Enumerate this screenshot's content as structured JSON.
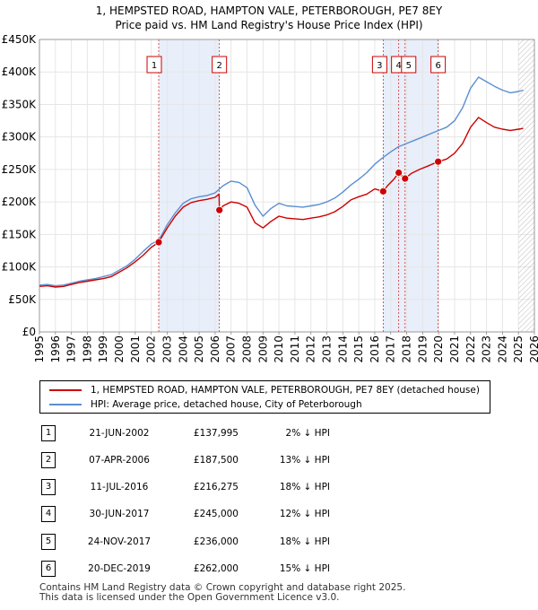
{
  "title_line1": "1, HEMPSTED ROAD, HAMPTON VALE, PETERBOROUGH, PE7 8EY",
  "title_line2": "Price paid vs. HM Land Registry's House Price Index (HPI)",
  "legend": {
    "property_label": "1, HEMPSTED ROAD, HAMPTON VALE, PETERBOROUGH, PE7 8EY (detached house)",
    "hpi_label": "HPI: Average price, detached house, City of Peterborough"
  },
  "colors": {
    "property_line": "#cc0000",
    "hpi_line": "#5a8fd0",
    "shade": "#e8eefa",
    "marker_border": "#cc0000",
    "grid": "#e6e6e6"
  },
  "sales": [
    {
      "num": "1",
      "date": "21-JUN-2002",
      "price": "£137,995",
      "pct": "2% ↓ HPI",
      "year": 2002.47,
      "value": 137995
    },
    {
      "num": "2",
      "date": "07-APR-2006",
      "price": "£187,500",
      "pct": "13% ↓ HPI",
      "year": 2006.27,
      "value": 187500
    },
    {
      "num": "3",
      "date": "11-JUL-2016",
      "price": "£216,275",
      "pct": "18% ↓ HPI",
      "year": 2016.53,
      "value": 216275
    },
    {
      "num": "4",
      "date": "30-JUN-2017",
      "price": "£245,000",
      "pct": "12% ↓ HPI",
      "year": 2017.5,
      "value": 245000
    },
    {
      "num": "5",
      "date": "24-NOV-2017",
      "price": "£236,000",
      "pct": "18% ↓ HPI",
      "year": 2017.9,
      "value": 236000
    },
    {
      "num": "6",
      "date": "20-DEC-2019",
      "price": "£262,000",
      "pct": "15% ↓ HPI",
      "year": 2019.97,
      "value": 262000
    }
  ],
  "footer_line1": "Contains HM Land Registry data © Crown copyright and database right 2025.",
  "footer_line2": "This data is licensed under the Open Government Licence v3.0.",
  "chart_data": {
    "type": "line",
    "title": "1, HEMPSTED ROAD, HAMPTON VALE, PETERBOROUGH, PE7 8EY — Price paid vs. HM Land Registry's House Price Index (HPI)",
    "xlabel": "",
    "ylabel": "",
    "xlim": [
      1995,
      2026
    ],
    "ylim": [
      0,
      450000
    ],
    "x_ticks": [
      "1995",
      "1996",
      "1997",
      "1998",
      "1999",
      "2000",
      "2001",
      "2002",
      "2003",
      "2004",
      "2005",
      "2006",
      "2007",
      "2008",
      "2009",
      "2010",
      "2011",
      "2012",
      "2013",
      "2014",
      "2015",
      "2016",
      "2017",
      "2018",
      "2019",
      "2020",
      "2021",
      "2022",
      "2023",
      "2024",
      "2025",
      "2026"
    ],
    "y_ticks": [
      {
        "value": 0,
        "label": "£0"
      },
      {
        "value": 50000,
        "label": "£50K"
      },
      {
        "value": 100000,
        "label": "£100K"
      },
      {
        "value": 150000,
        "label": "£150K"
      },
      {
        "value": 200000,
        "label": "£200K"
      },
      {
        "value": 250000,
        "label": "£250K"
      },
      {
        "value": 300000,
        "label": "£300K"
      },
      {
        "value": 350000,
        "label": "£350K"
      },
      {
        "value": 400000,
        "label": "£400K"
      },
      {
        "value": 450000,
        "label": "£450K"
      }
    ],
    "shaded_ranges": [
      [
        2002.47,
        2006.27
      ],
      [
        2016.53,
        2019.97
      ]
    ],
    "future_hatch_from": 2025.0,
    "series": [
      {
        "name": "HPI: Average price, detached house, City of Peterborough",
        "x": [
          1995.0,
          1995.5,
          1996.0,
          1996.5,
          1997.0,
          1997.5,
          1998.0,
          1998.5,
          1999.0,
          1999.5,
          2000.0,
          2000.5,
          2001.0,
          2001.5,
          2002.0,
          2002.5,
          2003.0,
          2003.5,
          2004.0,
          2004.5,
          2005.0,
          2005.5,
          2006.0,
          2006.5,
          2007.0,
          2007.5,
          2008.0,
          2008.5,
          2009.0,
          2009.5,
          2010.0,
          2010.5,
          2011.0,
          2011.5,
          2012.0,
          2012.5,
          2013.0,
          2013.5,
          2014.0,
          2014.5,
          2015.0,
          2015.5,
          2016.0,
          2016.5,
          2017.0,
          2017.5,
          2018.0,
          2018.5,
          2019.0,
          2019.5,
          2020.0,
          2020.5,
          2021.0,
          2021.5,
          2022.0,
          2022.5,
          2023.0,
          2023.5,
          2024.0,
          2024.5,
          2025.0,
          2025.3
        ],
        "values": [
          72000,
          73000,
          71000,
          72000,
          75000,
          78000,
          80000,
          82000,
          85000,
          88000,
          95000,
          102000,
          112000,
          124000,
          135000,
          142000,
          165000,
          183000,
          198000,
          205000,
          208000,
          210000,
          214000,
          225000,
          232000,
          230000,
          222000,
          195000,
          178000,
          190000,
          198000,
          194000,
          193000,
          192000,
          194000,
          196000,
          200000,
          206000,
          215000,
          226000,
          235000,
          245000,
          258000,
          268000,
          277000,
          285000,
          290000,
          295000,
          300000,
          305000,
          310000,
          315000,
          325000,
          345000,
          375000,
          392000,
          385000,
          378000,
          372000,
          368000,
          370000,
          372000
        ]
      },
      {
        "name": "1, HEMPSTED ROAD, HAMPTON VALE, PETERBOROUGH, PE7 8EY (detached house)",
        "x": [
          1995.0,
          1995.5,
          1996.0,
          1996.5,
          1997.0,
          1997.5,
          1998.0,
          1998.5,
          1999.0,
          1999.5,
          2000.0,
          2000.5,
          2001.0,
          2001.5,
          2002.0,
          2002.47,
          2003.0,
          2003.5,
          2004.0,
          2004.5,
          2005.0,
          2005.5,
          2006.0,
          2006.25,
          2006.27,
          2006.5,
          2007.0,
          2007.5,
          2008.0,
          2008.5,
          2009.0,
          2009.5,
          2010.0,
          2010.5,
          2011.0,
          2011.5,
          2012.0,
          2012.5,
          2013.0,
          2013.5,
          2014.0,
          2014.5,
          2015.0,
          2015.5,
          2016.0,
          2016.53,
          2016.8,
          2017.2,
          2017.5,
          2017.7,
          2017.9,
          2018.3,
          2018.8,
          2019.3,
          2019.97,
          2020.5,
          2021.0,
          2021.5,
          2022.0,
          2022.5,
          2023.0,
          2023.5,
          2024.0,
          2024.5,
          2025.0,
          2025.3
        ],
        "values": [
          70000,
          71000,
          69000,
          70000,
          73000,
          76000,
          78000,
          80000,
          82000,
          85000,
          92000,
          99000,
          108000,
          118000,
          130000,
          137995,
          160000,
          178000,
          192000,
          199000,
          202000,
          204000,
          207000,
          212000,
          187500,
          194000,
          200000,
          198000,
          192000,
          168000,
          160000,
          170000,
          178000,
          175000,
          174000,
          173000,
          175000,
          177000,
          180000,
          185000,
          193000,
          203000,
          208000,
          212000,
          220000,
          216275,
          225000,
          235000,
          245000,
          240000,
          236000,
          244000,
          250000,
          255000,
          262000,
          266000,
          275000,
          290000,
          315000,
          330000,
          322000,
          315000,
          312000,
          310000,
          312000,
          313000
        ]
      }
    ],
    "sale_markers": [
      {
        "label": "1",
        "x": 2002.47,
        "y": 137995
      },
      {
        "label": "2",
        "x": 2006.27,
        "y": 187500
      },
      {
        "label": "3",
        "x": 2016.53,
        "y": 216275
      },
      {
        "label": "4",
        "x": 2017.5,
        "y": 245000
      },
      {
        "label": "5",
        "x": 2017.9,
        "y": 236000
      },
      {
        "label": "6",
        "x": 2019.97,
        "y": 262000
      }
    ]
  }
}
